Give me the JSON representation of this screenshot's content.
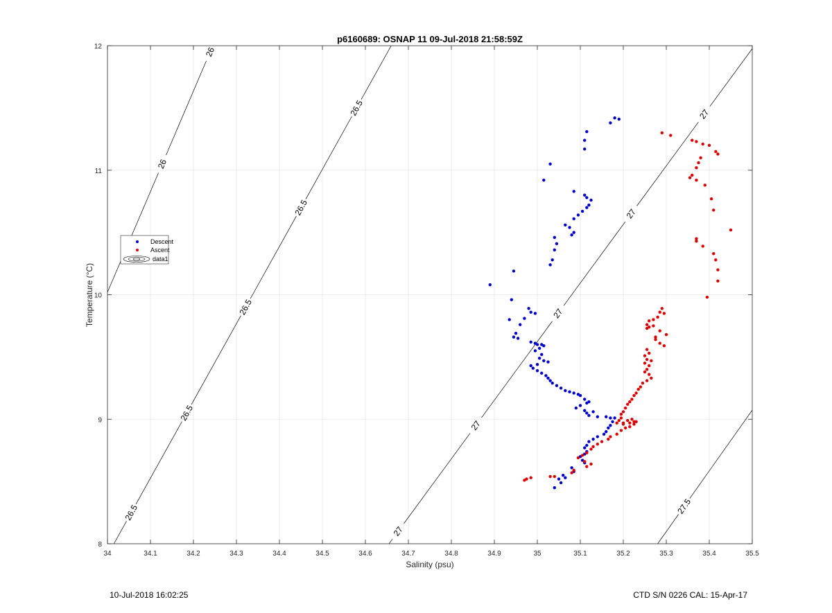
{
  "chart_data": {
    "type": "scatter",
    "title": "p6160689: OSNAP 11 09-Jul-2018 21:58:59Z",
    "xlabel": "Salinity (psu)",
    "ylabel": "Temperature (°C)",
    "xlim": [
      34,
      35.5
    ],
    "ylim": [
      8,
      12
    ],
    "xticks": [
      "34",
      "34.1",
      "34.2",
      "34.3",
      "34.4",
      "34.5",
      "34.6",
      "34.7",
      "34.8",
      "34.9",
      "35",
      "35.1",
      "35.2",
      "35.3",
      "35.4",
      "35.5"
    ],
    "yticks": [
      "8",
      "9",
      "10",
      "11",
      "12"
    ],
    "grid": true,
    "legend_position": "left",
    "legend": [
      "Descent",
      "Ascent",
      "data1"
    ],
    "colors": {
      "descent": "#0000cd",
      "ascent": "#e00000",
      "contour": "#000000",
      "grid": "#e6e6e6"
    },
    "contours": [
      {
        "level": "26",
        "labels": [
          "26",
          "26"
        ]
      },
      {
        "level": "26.5",
        "labels": [
          "26.5",
          "26.5",
          "26.5",
          "26.5",
          "26.5"
        ]
      },
      {
        "level": "27",
        "labels": [
          "27",
          "27",
          "27",
          "27",
          "27"
        ]
      },
      {
        "level": "27.5",
        "labels": [
          "27.5"
        ]
      }
    ],
    "series": [
      {
        "name": "Descent",
        "points": [
          [
            35.18,
            11.42
          ],
          [
            35.19,
            11.41
          ],
          [
            35.17,
            11.38
          ],
          [
            35.115,
            11.31
          ],
          [
            35.11,
            11.24
          ],
          [
            35.11,
            11.17
          ],
          [
            35.03,
            11.05
          ],
          [
            35.015,
            10.92
          ],
          [
            35.085,
            10.83
          ],
          [
            35.11,
            10.8
          ],
          [
            35.115,
            10.78
          ],
          [
            35.125,
            10.76
          ],
          [
            35.12,
            10.72
          ],
          [
            35.115,
            10.7
          ],
          [
            35.105,
            10.67
          ],
          [
            35.095,
            10.64
          ],
          [
            35.085,
            10.61
          ],
          [
            35.065,
            10.56
          ],
          [
            35.075,
            10.54
          ],
          [
            35.085,
            10.5
          ],
          [
            35.08,
            10.48
          ],
          [
            35.04,
            10.46
          ],
          [
            35.045,
            10.41
          ],
          [
            35.04,
            10.36
          ],
          [
            35.035,
            10.28
          ],
          [
            35.03,
            10.24
          ],
          [
            34.945,
            10.19
          ],
          [
            34.89,
            10.08
          ],
          [
            34.94,
            9.96
          ],
          [
            34.98,
            9.89
          ],
          [
            34.985,
            9.86
          ],
          [
            34.995,
            9.85
          ],
          [
            34.97,
            9.81
          ],
          [
            34.935,
            9.8
          ],
          [
            34.96,
            9.76
          ],
          [
            34.95,
            9.69
          ],
          [
            34.945,
            9.66
          ],
          [
            34.955,
            9.65
          ],
          [
            34.985,
            9.62
          ],
          [
            34.995,
            9.61
          ],
          [
            35.0,
            9.6
          ],
          [
            35.01,
            9.6
          ],
          [
            35.015,
            9.59
          ],
          [
            35.005,
            9.57
          ],
          [
            34.995,
            9.55
          ],
          [
            35.01,
            9.52
          ],
          [
            35.005,
            9.49
          ],
          [
            35.015,
            9.47
          ],
          [
            35.025,
            9.46
          ],
          [
            35.0,
            9.44
          ],
          [
            34.985,
            9.43
          ],
          [
            34.99,
            9.41
          ],
          [
            35.0,
            9.39
          ],
          [
            35.01,
            9.37
          ],
          [
            35.02,
            9.35
          ],
          [
            35.025,
            9.33
          ],
          [
            35.03,
            9.31
          ],
          [
            35.035,
            9.29
          ],
          [
            35.045,
            9.27
          ],
          [
            35.055,
            9.25
          ],
          [
            35.065,
            9.23
          ],
          [
            35.075,
            9.22
          ],
          [
            35.085,
            9.21
          ],
          [
            35.095,
            9.2
          ],
          [
            35.1,
            9.19
          ],
          [
            35.11,
            9.16
          ],
          [
            35.12,
            9.14
          ],
          [
            35.115,
            9.13
          ],
          [
            35.1,
            9.11
          ],
          [
            35.09,
            9.09
          ],
          [
            35.11,
            9.07
          ],
          [
            35.13,
            9.06
          ],
          [
            35.115,
            9.05
          ],
          [
            35.12,
            9.03
          ],
          [
            35.14,
            9.02
          ],
          [
            35.16,
            9.02
          ],
          [
            35.17,
            9.01
          ],
          [
            35.18,
            9.01
          ],
          [
            35.175,
            8.98
          ],
          [
            35.17,
            8.95
          ],
          [
            35.165,
            8.93
          ],
          [
            35.16,
            8.9
          ],
          [
            35.155,
            8.88
          ],
          [
            35.14,
            8.86
          ],
          [
            35.13,
            8.84
          ],
          [
            35.12,
            8.82
          ],
          [
            35.115,
            8.79
          ],
          [
            35.11,
            8.77
          ],
          [
            35.115,
            8.74
          ],
          [
            35.11,
            8.72
          ],
          [
            35.1,
            8.7
          ],
          [
            35.105,
            8.67
          ],
          [
            35.11,
            8.65
          ],
          [
            35.08,
            8.61
          ],
          [
            35.085,
            8.58
          ],
          [
            35.06,
            8.55
          ],
          [
            35.065,
            8.53
          ],
          [
            35.05,
            8.52
          ],
          [
            35.055,
            8.49
          ],
          [
            35.04,
            8.45
          ]
        ]
      },
      {
        "name": "Ascent",
        "points": [
          [
            35.29,
            11.3
          ],
          [
            35.31,
            11.28
          ],
          [
            35.36,
            11.24
          ],
          [
            35.37,
            11.23
          ],
          [
            35.385,
            11.21
          ],
          [
            35.4,
            11.2
          ],
          [
            35.415,
            11.15
          ],
          [
            35.42,
            11.13
          ],
          [
            35.38,
            11.1
          ],
          [
            35.375,
            11.06
          ],
          [
            35.37,
            11.02
          ],
          [
            35.36,
            10.96
          ],
          [
            35.355,
            10.94
          ],
          [
            35.37,
            10.92
          ],
          [
            35.39,
            10.88
          ],
          [
            35.405,
            10.77
          ],
          [
            35.41,
            10.68
          ],
          [
            35.45,
            10.52
          ],
          [
            35.37,
            10.45
          ],
          [
            35.37,
            10.43
          ],
          [
            35.385,
            10.39
          ],
          [
            35.41,
            10.33
          ],
          [
            35.415,
            10.28
          ],
          [
            35.42,
            10.2
          ],
          [
            35.42,
            10.11
          ],
          [
            35.395,
            9.98
          ],
          [
            35.29,
            9.89
          ],
          [
            35.285,
            9.86
          ],
          [
            35.295,
            9.85
          ],
          [
            35.28,
            9.82
          ],
          [
            35.27,
            9.8
          ],
          [
            35.26,
            9.79
          ],
          [
            35.255,
            9.76
          ],
          [
            35.27,
            9.75
          ],
          [
            35.26,
            9.74
          ],
          [
            35.255,
            9.73
          ],
          [
            35.285,
            9.71
          ],
          [
            35.3,
            9.68
          ],
          [
            35.275,
            9.66
          ],
          [
            35.275,
            9.64
          ],
          [
            35.285,
            9.61
          ],
          [
            35.295,
            9.59
          ],
          [
            35.255,
            9.56
          ],
          [
            35.26,
            9.53
          ],
          [
            35.25,
            9.51
          ],
          [
            35.255,
            9.48
          ],
          [
            35.265,
            9.47
          ],
          [
            35.25,
            9.45
          ],
          [
            35.26,
            9.43
          ],
          [
            35.255,
            9.4
          ],
          [
            35.25,
            9.38
          ],
          [
            35.26,
            9.36
          ],
          [
            35.265,
            9.33
          ],
          [
            35.255,
            9.31
          ],
          [
            35.245,
            9.29
          ],
          [
            35.24,
            9.26
          ],
          [
            35.235,
            9.24
          ],
          [
            35.23,
            9.21
          ],
          [
            35.225,
            9.19
          ],
          [
            35.22,
            9.16
          ],
          [
            35.215,
            9.14
          ],
          [
            35.21,
            9.12
          ],
          [
            35.205,
            9.09
          ],
          [
            35.2,
            9.06
          ],
          [
            35.195,
            9.04
          ],
          [
            35.195,
            9.01
          ],
          [
            35.19,
            8.99
          ],
          [
            35.2,
            8.97
          ],
          [
            35.21,
            8.99
          ],
          [
            35.22,
            9.0
          ],
          [
            35.23,
            8.98
          ],
          [
            35.225,
            8.96
          ],
          [
            35.215,
            8.94
          ],
          [
            35.205,
            8.93
          ],
          [
            35.195,
            8.91
          ],
          [
            35.185,
            8.88
          ],
          [
            35.17,
            8.86
          ],
          [
            35.165,
            8.84
          ],
          [
            35.15,
            8.82
          ],
          [
            35.14,
            8.8
          ],
          [
            35.13,
            8.78
          ],
          [
            35.125,
            8.76
          ],
          [
            35.115,
            8.73
          ],
          [
            35.105,
            8.71
          ],
          [
            35.095,
            8.69
          ],
          [
            35.11,
            8.66
          ],
          [
            35.125,
            8.64
          ],
          [
            35.115,
            8.62
          ],
          [
            35.085,
            8.59
          ],
          [
            35.08,
            8.57
          ],
          [
            35.04,
            8.54
          ],
          [
            35.03,
            8.54
          ],
          [
            34.985,
            8.53
          ],
          [
            34.975,
            8.52
          ],
          [
            34.97,
            8.51
          ],
          [
            35.225,
            8.98
          ],
          [
            35.215,
            8.97
          ],
          [
            35.2,
            8.96
          ],
          [
            35.185,
            8.97
          ]
        ]
      }
    ]
  },
  "footer": {
    "left": "10-Jul-2018 16:02:25",
    "right": "CTD S/N 0226  CAL: 15-Apr-17"
  }
}
